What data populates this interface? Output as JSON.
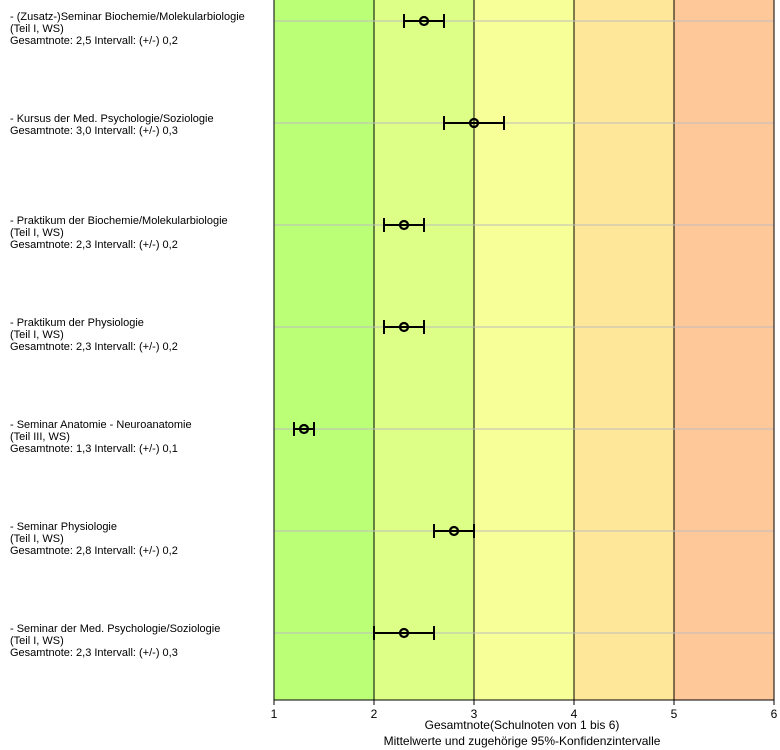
{
  "chart_data": {
    "type": "scatter",
    "subtype": "error-bar",
    "orientation": "horizontal",
    "xlabel": "Gesamtnote(Schulnoten von 1 bis 6)",
    "xlabel_sub": "Mittelwerte und zugehörige 95%-Konfidenzintervalle",
    "xlim": [
      1,
      6
    ],
    "xticks": [
      "1",
      "2",
      "3",
      "4",
      "5",
      "6"
    ],
    "grid": true,
    "legend": "none",
    "bands": [
      {
        "from": 1,
        "to": 2,
        "color": "#bbff77"
      },
      {
        "from": 2,
        "to": 3,
        "color": "#ddff88"
      },
      {
        "from": 3,
        "to": 4,
        "color": "#f7ff99"
      },
      {
        "from": 4,
        "to": 5,
        "color": "#ffe79a"
      },
      {
        "from": 5,
        "to": 6,
        "color": "#ffc899"
      }
    ],
    "items": [
      {
        "lines": [
          "- (Zusatz-)Seminar Biochemie/Molekularbiologie",
          "(Teil I, WS)",
          "Gesamtnote: 2,5 Intervall: (+/-) 0,2"
        ],
        "mean": 2.5,
        "ci": 0.2
      },
      {
        "lines": [
          "- Kursus der Med. Psychologie/Soziologie",
          "Gesamtnote: 3,0 Intervall: (+/-) 0,3"
        ],
        "mean": 3.0,
        "ci": 0.3
      },
      {
        "lines": [
          "- Praktikum der Biochemie/Molekularbiologie",
          "(Teil I, WS)",
          "Gesamtnote: 2,3 Intervall: (+/-) 0,2"
        ],
        "mean": 2.3,
        "ci": 0.2
      },
      {
        "lines": [
          "- Praktikum der Physiologie",
          "(Teil I, WS)",
          "Gesamtnote: 2,3 Intervall: (+/-) 0,2"
        ],
        "mean": 2.3,
        "ci": 0.2
      },
      {
        "lines": [
          "- Seminar Anatomie - Neuroanatomie",
          "(Teil III, WS)",
          "Gesamtnote: 1,3 Intervall: (+/-) 0,1"
        ],
        "mean": 1.3,
        "ci": 0.1
      },
      {
        "lines": [
          "- Seminar Physiologie",
          "(Teil I, WS)",
          "Gesamtnote: 2,8 Intervall: (+/-) 0,2"
        ],
        "mean": 2.8,
        "ci": 0.2
      },
      {
        "lines": [
          "- Seminar der Med. Psychologie/Soziologie",
          "(Teil I, WS)",
          "Gesamtnote: 2,3 Intervall: (+/-) 0,3"
        ],
        "mean": 2.3,
        "ci": 0.3
      }
    ]
  }
}
